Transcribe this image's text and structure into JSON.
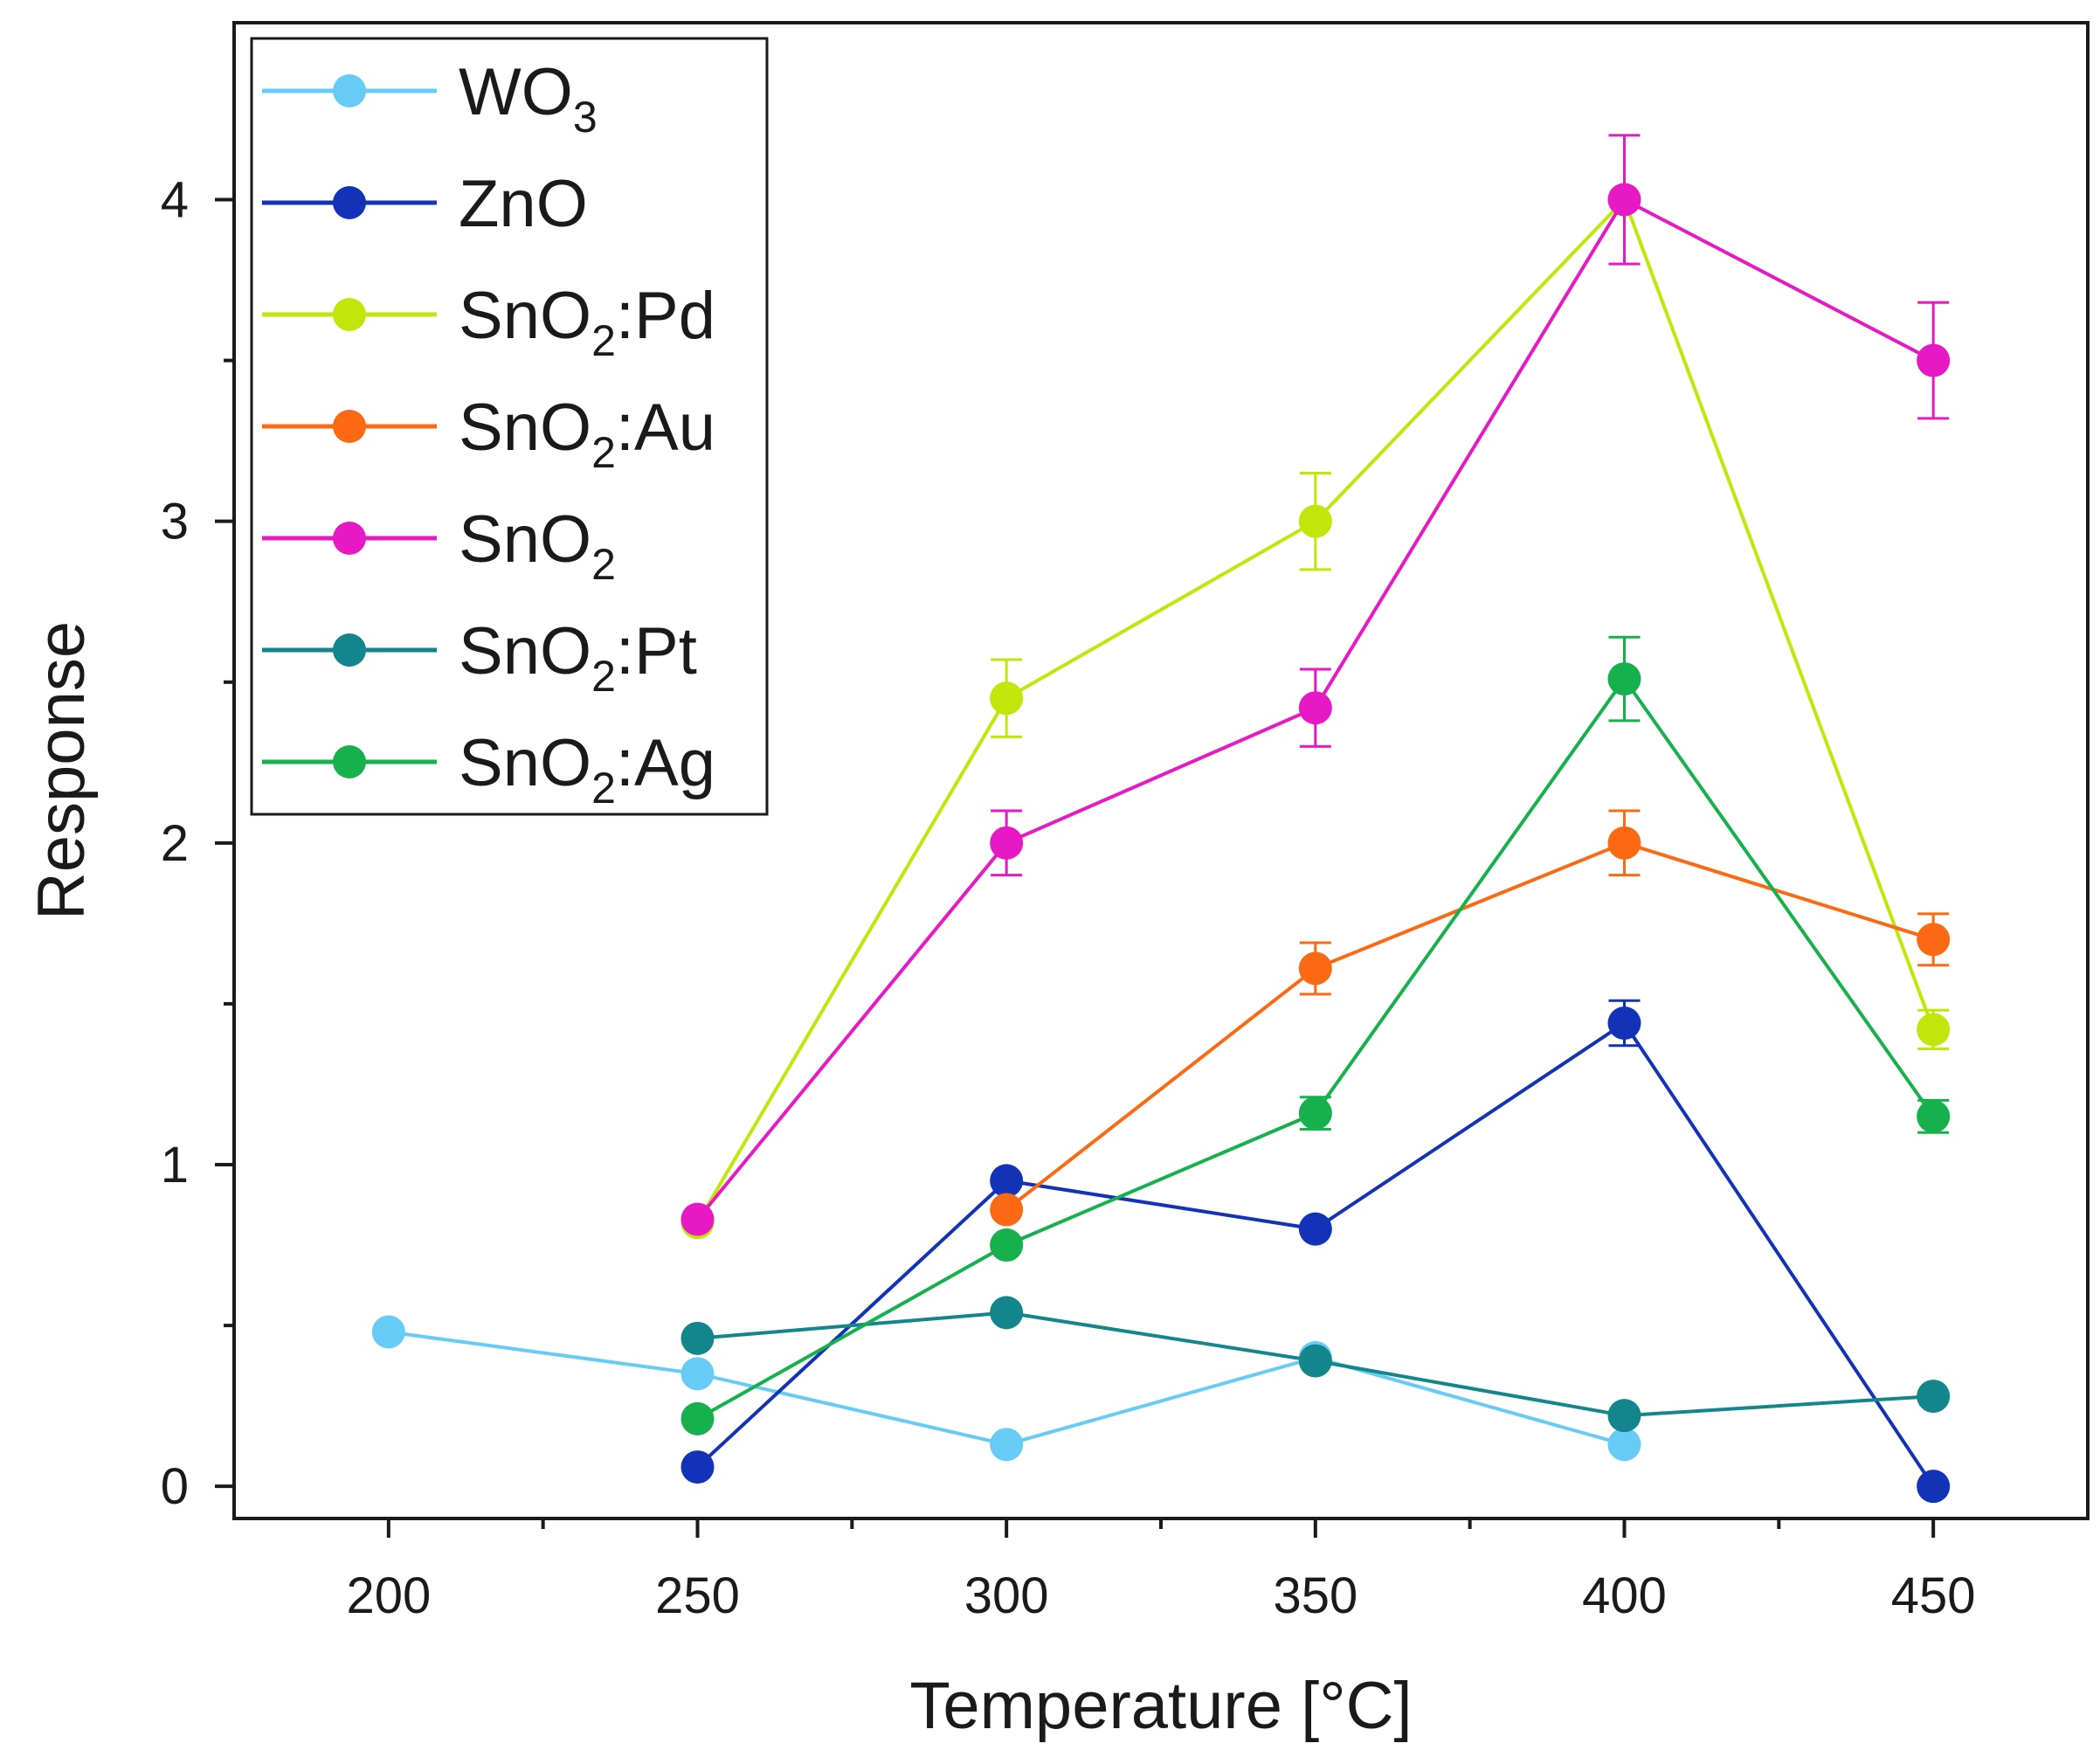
{
  "chart_data": {
    "type": "line",
    "title": "",
    "xlabel": "Temperature [°C]",
    "ylabel": "Response",
    "xlim": [
      175,
      475
    ],
    "ylim": [
      -0.1,
      4.55
    ],
    "xticks": [
      200,
      250,
      300,
      350,
      400,
      450
    ],
    "xtick_labels": [
      "200",
      "250",
      "300",
      "350",
      "400",
      "450"
    ],
    "xminor": [
      225,
      275,
      325,
      375,
      425
    ],
    "yticks": [
      0,
      1,
      2,
      3,
      4
    ],
    "ytick_labels": [
      "0",
      "1",
      "2",
      "3",
      "4"
    ],
    "yminor": [
      0.5,
      1.5,
      2.5,
      3.5
    ],
    "grid": false,
    "legend_position": "top-left",
    "series": [
      {
        "name": "WO3",
        "label_main": "WO",
        "label_sub": "3",
        "label_suffix": "",
        "color": "#66ccf5",
        "x": [
          200,
          250,
          300,
          350,
          400
        ],
        "y": [
          0.48,
          0.35,
          0.13,
          0.4,
          0.13
        ],
        "err": [
          0,
          0,
          0,
          0,
          0
        ]
      },
      {
        "name": "ZnO",
        "label_main": "ZnO",
        "label_sub": "",
        "label_suffix": "",
        "color": "#1232b8",
        "x": [
          250,
          300,
          350,
          400,
          450
        ],
        "y": [
          0.06,
          0.95,
          0.8,
          1.44,
          0.0
        ],
        "err": [
          0,
          0,
          0,
          0.07,
          0
        ]
      },
      {
        "name": "SnO2:Pd",
        "label_main": "SnO",
        "label_sub": "2",
        "label_suffix": ":Pd",
        "color": "#c2e50a",
        "x": [
          250,
          300,
          350,
          400,
          450
        ],
        "y": [
          0.82,
          2.45,
          3.0,
          4.0,
          1.42
        ],
        "err": [
          0,
          0.12,
          0.15,
          0,
          0.06
        ]
      },
      {
        "name": "SnO2:Au",
        "label_main": "SnO",
        "label_sub": "2",
        "label_suffix": ":Au",
        "color": "#fb6a12",
        "x": [
          300,
          350,
          400,
          450
        ],
        "y": [
          0.86,
          1.61,
          2.0,
          1.7
        ],
        "err": [
          0,
          0.08,
          0.1,
          0.08
        ]
      },
      {
        "name": "SnO2",
        "label_main": "SnO",
        "label_sub": "2",
        "label_suffix": "",
        "color": "#e619c4",
        "x": [
          250,
          300,
          350,
          400,
          450
        ],
        "y": [
          0.83,
          2.0,
          2.42,
          4.0,
          3.5
        ],
        "err": [
          0,
          0.1,
          0.12,
          0.2,
          0.18
        ]
      },
      {
        "name": "SnO2:Pt",
        "label_main": "SnO",
        "label_sub": "2",
        "label_suffix": ":Pt",
        "color": "#13868c",
        "x": [
          250,
          300,
          350,
          400,
          450
        ],
        "y": [
          0.46,
          0.54,
          0.39,
          0.22,
          0.28
        ],
        "err": [
          0,
          0,
          0,
          0,
          0
        ]
      },
      {
        "name": "SnO2:Ag",
        "label_main": "SnO",
        "label_sub": "2",
        "label_suffix": ":Ag",
        "color": "#16b04c",
        "x": [
          250,
          300,
          350,
          400,
          450
        ],
        "y": [
          0.21,
          0.75,
          1.16,
          2.51,
          1.15
        ],
        "err": [
          0,
          0,
          0.05,
          0.13,
          0.05
        ]
      }
    ]
  }
}
